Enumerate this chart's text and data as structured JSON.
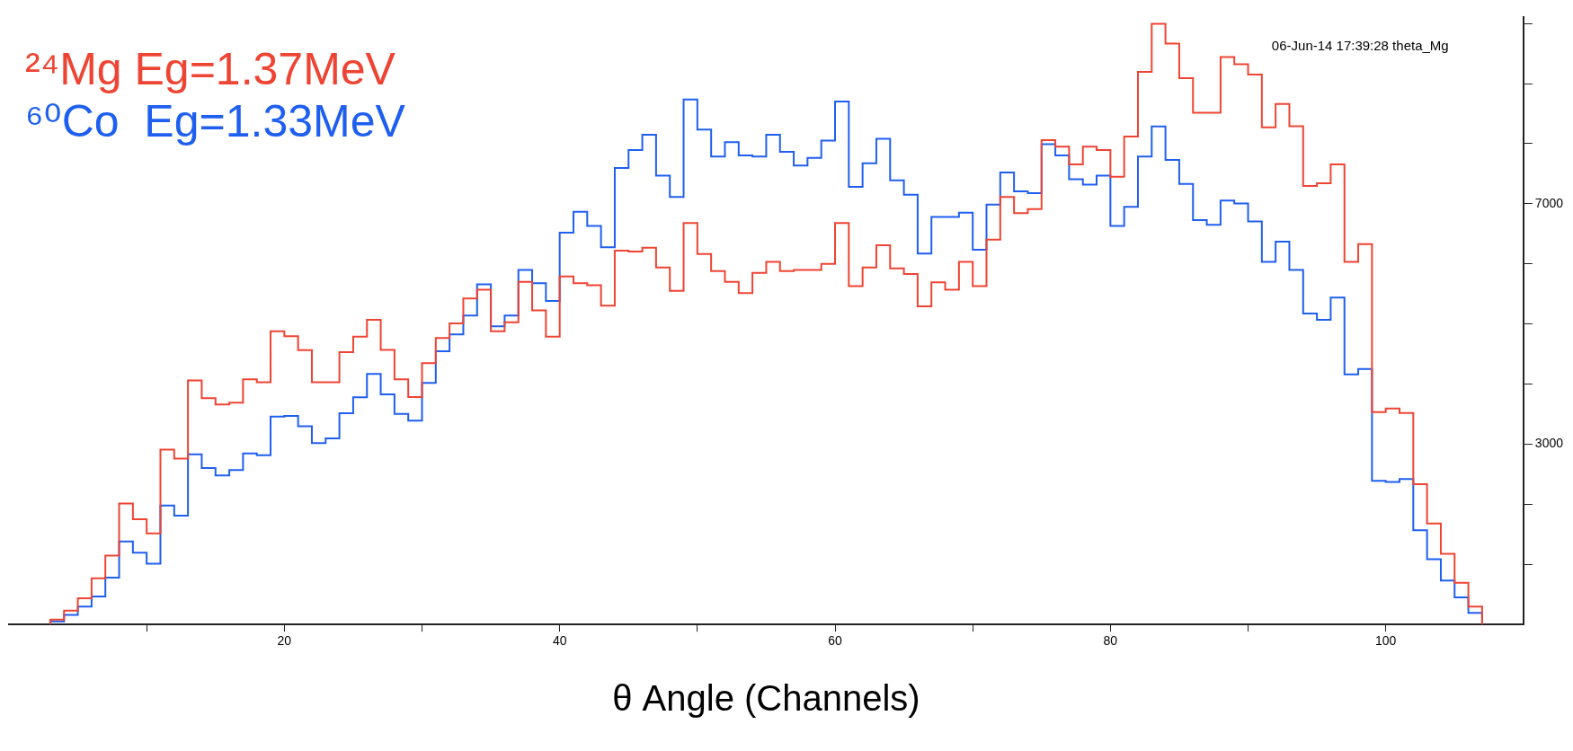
{
  "chart_data": {
    "type": "histogram",
    "xlabel": "θ Angle (Channels)",
    "bins": [
      3,
      4,
      5,
      6,
      7,
      8,
      9,
      10,
      11,
      12,
      13,
      14,
      15,
      16,
      17,
      18,
      19,
      20,
      21,
      22,
      23,
      24,
      25,
      26,
      27,
      28,
      29,
      30,
      31,
      32,
      33,
      34,
      35,
      36,
      37,
      38,
      39,
      40,
      41,
      42,
      43,
      44,
      45,
      46,
      47,
      48,
      49,
      50,
      51,
      52,
      53,
      54,
      55,
      56,
      57,
      58,
      59,
      60,
      61,
      62,
      63,
      64,
      65,
      66,
      67,
      68,
      69,
      70,
      71,
      72,
      73,
      74,
      75,
      76,
      77,
      78,
      79,
      80,
      81,
      82,
      83,
      84,
      85,
      86,
      87,
      88,
      89,
      90,
      91,
      92,
      93,
      94,
      95,
      96,
      97,
      98,
      99,
      100,
      101,
      102,
      103,
      104,
      105,
      106,
      107
    ],
    "series": [
      {
        "name": "²⁴Mg Eg=1.37MeV",
        "color": "#ee4433",
        "values": [
          80,
          230,
          435,
          770,
          1145,
          2015,
          1750,
          1515,
          2910,
          2760,
          4060,
          3765,
          3660,
          3690,
          4080,
          4030,
          4880,
          4795,
          4565,
          4030,
          4030,
          4530,
          4790,
          5070,
          4570,
          4080,
          3785,
          4350,
          4765,
          5010,
          5425,
          5570,
          4880,
          5030,
          5700,
          5225,
          4790,
          5790,
          5680,
          5645,
          5305,
          6220,
          6205,
          6270,
          5940,
          5550,
          6680,
          6165,
          5880,
          5700,
          5515,
          5850,
          6035,
          5880,
          5900,
          5900,
          6000,
          6680,
          5630,
          5940,
          6310,
          5925,
          5830,
          5295,
          5695,
          5570,
          6035,
          5630,
          6405,
          7115,
          6845,
          6910,
          8060,
          7950,
          7655,
          7950,
          7895,
          7450,
          8120,
          9195,
          9995,
          9665,
          9090,
          8515,
          8515,
          9440,
          9320,
          9150,
          8270,
          8660,
          8290,
          7295,
          7340,
          7655,
          6035,
          6330,
          3535,
          3595,
          3520,
          2335,
          1680,
          1175,
          695,
          300
        ]
      },
      {
        "name": "⁶⁰Co  Eg=1.33MeV",
        "color": "#1f5ff0",
        "values": [
          50,
          160,
          300,
          465,
          780,
          1380,
          1195,
          1010,
          1980,
          1810,
          2830,
          2605,
          2480,
          2570,
          2845,
          2815,
          3460,
          3470,
          3300,
          3020,
          3095,
          3515,
          3780,
          4170,
          3830,
          3505,
          3390,
          4020,
          4545,
          4825,
          5140,
          5660,
          4960,
          5140,
          5900,
          5680,
          5385,
          6520,
          6865,
          6630,
          6275,
          7595,
          7895,
          8150,
          7470,
          7115,
          8735,
          8235,
          7785,
          8025,
          7805,
          7785,
          8150,
          7865,
          7635,
          7765,
          8050,
          8700,
          7280,
          7675,
          8080,
          7390,
          7150,
          6170,
          6780,
          6780,
          6850,
          6235,
          6985,
          7520,
          7205,
          7175,
          7990,
          7805,
          7410,
          7320,
          7470,
          6630,
          6950,
          7785,
          8285,
          7730,
          7330,
          6730,
          6650,
          7055,
          7005,
          6705,
          6035,
          6370,
          5900,
          5175,
          5070,
          5440,
          4160,
          4250,
          2390,
          2370,
          2420,
          1570,
          1085,
          730,
          450,
          195
        ]
      }
    ],
    "xlim": [
      0,
      110
    ],
    "xticks": [
      {
        "value": 10,
        "label": null
      },
      20,
      {
        "value": 30,
        "label": null
      },
      40,
      {
        "value": 50,
        "label": null
      },
      60,
      {
        "value": 70,
        "label": null
      },
      80,
      {
        "value": 90,
        "label": null
      },
      100
    ],
    "ylim": [
      0,
      10100
    ],
    "yticks": [
      {
        "value": 1000,
        "label": null
      },
      {
        "value": 2000,
        "label": null
      },
      3000,
      {
        "value": 4000,
        "label": null
      },
      {
        "value": 5000,
        "label": null
      },
      {
        "value": 6000,
        "label": null
      },
      7000,
      {
        "value": 8000,
        "label": null
      },
      {
        "value": 9000,
        "label": null
      },
      {
        "value": 10000,
        "label": null
      }
    ],
    "annotations": [
      "06-Jun-14 17:39:28 theta_Mg"
    ],
    "legend": "top left",
    "grid": false
  }
}
